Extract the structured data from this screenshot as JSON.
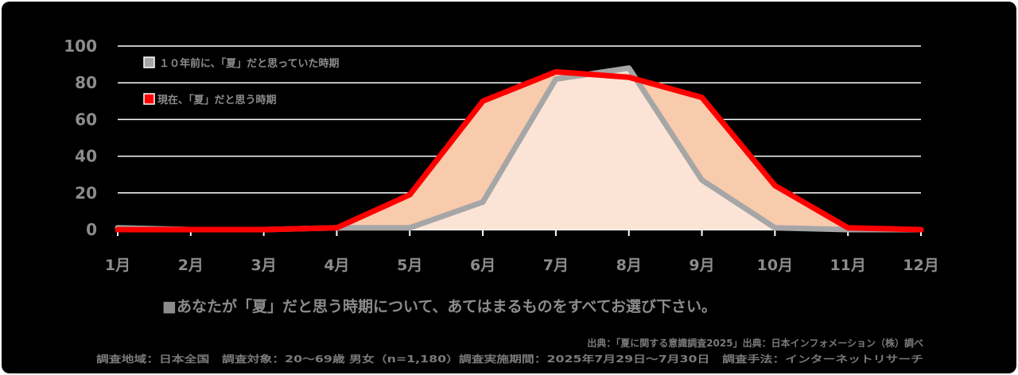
{
  "chart_data": {
    "type": "area",
    "categories": [
      "1月",
      "2月",
      "3月",
      "4月",
      "5月",
      "6月",
      "7月",
      "8月",
      "9月",
      "10月",
      "11月",
      "12月"
    ],
    "y_ticks": [
      "0",
      "20",
      "40",
      "60",
      "80",
      "100"
    ],
    "ylim": [
      0,
      100
    ],
    "grid": true,
    "legend_position": "top-left",
    "series": [
      {
        "name": "１０年前に、「夏」だと思っていた時期",
        "color": "#a6a6a6",
        "fill": "#fbe4d6",
        "values": [
          1,
          0,
          0,
          1,
          1,
          15,
          82,
          88,
          27,
          1,
          0,
          0
        ]
      },
      {
        "name": "現在、「夏」だと思う時期",
        "color": "#ff0000",
        "fill": "#f8cbad",
        "values": [
          0,
          0,
          0,
          1,
          19,
          70,
          86,
          83,
          72,
          24,
          1,
          0
        ]
      }
    ],
    "question": "■あなたが「夏」だと思う時期について、あてはまるものをすべてお選び下さい。",
    "source_line_1": "出典：「夏に関する意識調査2025」出典：日本インフォメーション（株）調べ",
    "source_line_2": "調査地域：日本全国　調査対象：20～69歳 男女（n=1,180）調査実施期間：2025年7月29日～7月30日　調査手法：インターネットリサーチ"
  }
}
